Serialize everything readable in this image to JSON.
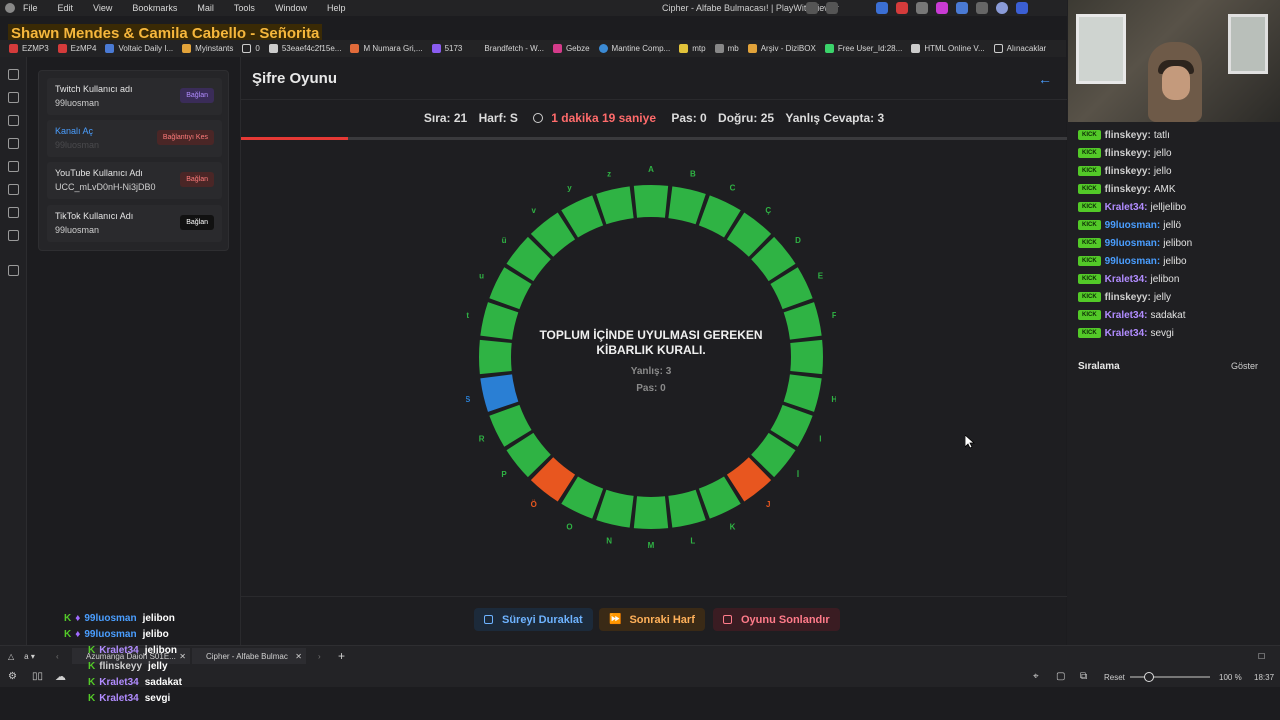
{
  "menubar": {
    "items": [
      "File",
      "Edit",
      "View",
      "Bookmarks",
      "Mail",
      "Tools",
      "Window",
      "Help"
    ],
    "window_title": "Cipher - Alfabe Bulmacası! | PlayWithViewer"
  },
  "overlay": {
    "song": "Shawn Mendes & Camila Cabello - Señorita"
  },
  "bookmarks": [
    "EZMP3",
    "EzMP4",
    "Voltaic Daily I...",
    "Myinstants",
    "0",
    "53eaef4c2f15e...",
    "M Numara Gri,...",
    "5173",
    "Brandfetch - W...",
    "Gebze",
    "Mantine Comp...",
    "mtp",
    "mb",
    "Arşiv - DiziBOX",
    "Free User_Id:28...",
    "HTML Online V...",
    "Alınacaklar"
  ],
  "connections": [
    {
      "label": "Twitch Kullanıcı adı",
      "value": "99luosman",
      "button": "Bağlan"
    },
    {
      "label": "Kanalı Aç",
      "value": "99luosman",
      "button": "Bağlantıyı Kes"
    },
    {
      "label": "YouTube Kullanıcı Adı",
      "value": "UCC_mLvD0nH-Ni3jDB0",
      "button": "Bağlan"
    },
    {
      "label": "TikTok Kullanıcı Adı",
      "value": "99luosman",
      "button": "Bağlan"
    }
  ],
  "game": {
    "title": "Şifre Oyunu",
    "stats": {
      "sira": "Sıra: 21",
      "harf": "Harf: S",
      "time": "1 dakika 19 saniye",
      "pas": "Pas: 0",
      "dogru": "Doğru: 25",
      "yanlis": "Yanlış Cevapta: 3"
    },
    "time_progress": 0.13,
    "question_line1": "TOPLUM İÇİNDE UYULMASI GEREKEN",
    "question_line2": "KİBARLIK KURALI.",
    "wrong": "Yanlış: 3",
    "pass": "Pas: 0",
    "letters": [
      "A",
      "B",
      "C",
      "Ç",
      "D",
      "E",
      "F",
      "G",
      "H",
      "I",
      "İ",
      "J",
      "K",
      "L",
      "M",
      "N",
      "O",
      "Ö",
      "P",
      "R",
      "S",
      "Ş",
      "t",
      "u",
      "ü",
      "v",
      "y",
      "z"
    ],
    "letter_states": [
      "g",
      "g",
      "g",
      "g",
      "g",
      "g",
      "g",
      "g",
      "g",
      "g",
      "g",
      "o",
      "g",
      "g",
      "g",
      "g",
      "g",
      "o",
      "g",
      "g",
      "b",
      "g",
      "g",
      "g",
      "g",
      "g",
      "g",
      "g"
    ],
    "colors": {
      "green": "#2fb344",
      "orange": "#e8561f",
      "blue": "#2a7fd4",
      "label": "#2fb344"
    },
    "buttons": {
      "pause": "Süreyi Duraklat",
      "next": "Sonraki Harf",
      "end": "Oyunu Sonlandır"
    }
  },
  "chat": [
    {
      "user": "flinskeyy:",
      "msg": "tatlı",
      "color": "#cfcfcf"
    },
    {
      "user": "flinskeyy:",
      "msg": "jello",
      "color": "#cfcfcf"
    },
    {
      "user": "flinskeyy:",
      "msg": "jello",
      "color": "#cfcfcf"
    },
    {
      "user": "flinskeyy:",
      "msg": "AMK",
      "color": "#cfcfcf"
    },
    {
      "user": "Kralet34:",
      "msg": "jelljelibo",
      "color": "#b18cff"
    },
    {
      "user": "99luosman:",
      "msg": "jellö",
      "color": "#4a9eff"
    },
    {
      "user": "99luosman:",
      "msg": "jelibon",
      "color": "#4a9eff"
    },
    {
      "user": "99luosman:",
      "msg": "jelibo",
      "color": "#4a9eff"
    },
    {
      "user": "Kralet34:",
      "msg": "jelibon",
      "color": "#b18cff"
    },
    {
      "user": "flinskeyy:",
      "msg": "jelly",
      "color": "#cfcfcf"
    },
    {
      "user": "Kralet34:",
      "msg": "sadakat",
      "color": "#b18cff"
    },
    {
      "user": "Kralet34:",
      "msg": "sevgi",
      "color": "#b18cff"
    }
  ],
  "kick_badge": "KICK",
  "ranking": {
    "title": "Sıralama",
    "show": "Göster"
  },
  "overlay_chat": [
    {
      "user": "99luosman",
      "msg": "jelibon",
      "color": "#4a9eff"
    },
    {
      "user": "99luosman",
      "msg": "jelibo",
      "color": "#4a9eff"
    },
    {
      "user": "Kralet34",
      "msg": "jelibon",
      "color": "#b18cff"
    },
    {
      "user": "flinskeyy",
      "msg": "jelly",
      "color": "#cfcfcf"
    },
    {
      "user": "Kralet34",
      "msg": "sadakat",
      "color": "#b18cff"
    },
    {
      "user": "Kralet34",
      "msg": "sevgi",
      "color": "#b18cff"
    }
  ],
  "taskbar": {
    "tab1": "Azumanga Daioh S01E...",
    "tab2": "Cipher - Alfabe Bulmac",
    "plus": "+"
  },
  "statusbar": {
    "reset": "Reset",
    "zoom": "100 %",
    "time": "18:37"
  }
}
